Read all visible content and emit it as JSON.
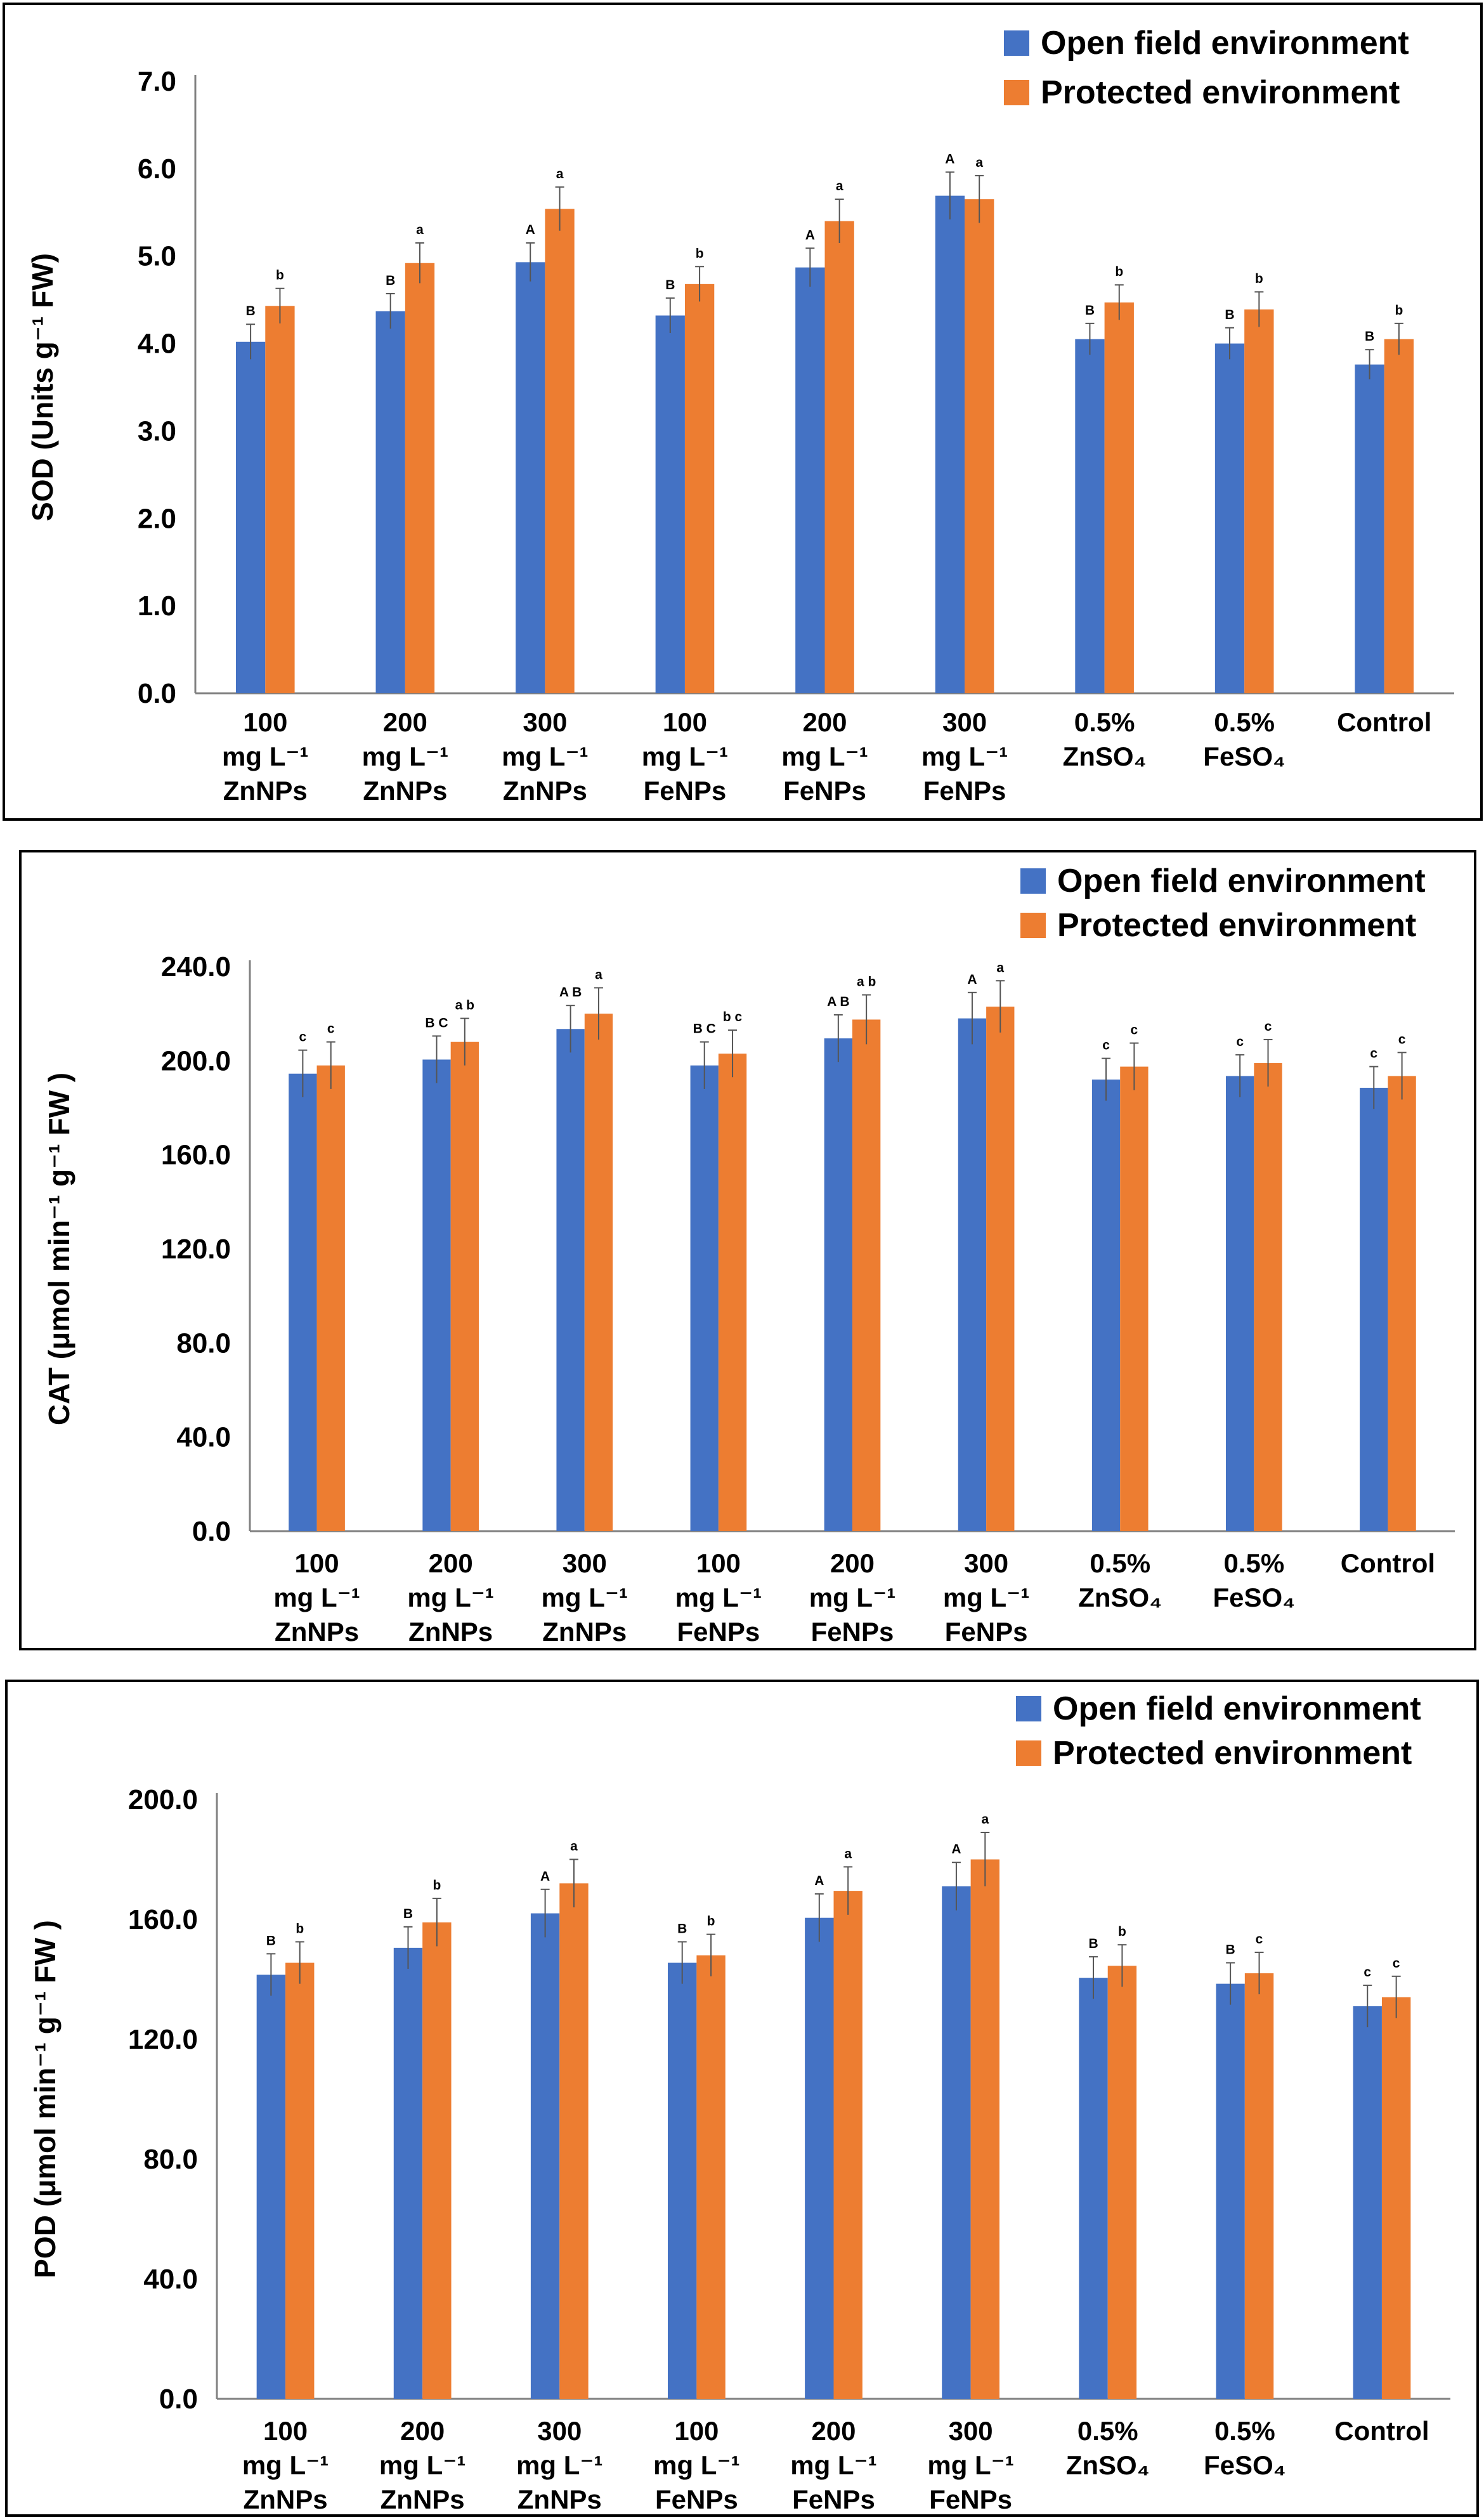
{
  "colors": {
    "open": "#4472C4",
    "protected": "#ED7D31",
    "error": "#555555",
    "axis": "#808080"
  },
  "legend": {
    "open": "Open field environment",
    "protected": "Protected environment",
    "placement": "top-right"
  },
  "categories": [
    [
      "100",
      "mg L⁻¹",
      "ZnNPs"
    ],
    [
      "200",
      "mg L⁻¹",
      "ZnNPs"
    ],
    [
      "300",
      "mg L⁻¹",
      "ZnNPs"
    ],
    [
      "100",
      "mg L⁻¹",
      "FeNPs"
    ],
    [
      "200",
      "mg L⁻¹",
      "FeNPs"
    ],
    [
      "300",
      "mg L⁻¹",
      "FeNPs"
    ],
    [
      "0.5%",
      "ZnSO₄"
    ],
    [
      "0.5%",
      "FeSO₄"
    ],
    [
      "Control"
    ]
  ],
  "chart_data": [
    {
      "type": "bar",
      "ylabel": "SOD (Units g⁻¹ FW)",
      "ylim": [
        0,
        7
      ],
      "yticks": [
        "0.0",
        "1.0",
        "2.0",
        "3.0",
        "4.0",
        "5.0",
        "6.0",
        "7.0"
      ],
      "grid": false,
      "series": [
        {
          "name": "Open field environment",
          "values": [
            4.02,
            4.37,
            4.93,
            4.32,
            4.87,
            5.69,
            4.05,
            4.0,
            3.76
          ],
          "errors": [
            0.2,
            0.2,
            0.22,
            0.2,
            0.22,
            0.27,
            0.18,
            0.18,
            0.17
          ],
          "letters": [
            "B",
            "B",
            "A",
            "B",
            "A",
            "A",
            "B",
            "B",
            "B"
          ]
        },
        {
          "name": "Protected environment",
          "values": [
            4.43,
            4.92,
            5.54,
            4.68,
            5.4,
            5.65,
            4.47,
            4.39,
            4.05
          ],
          "errors": [
            0.2,
            0.23,
            0.25,
            0.2,
            0.25,
            0.27,
            0.2,
            0.2,
            0.18
          ],
          "letters": [
            "b",
            "a",
            "a",
            "b",
            "a",
            "a",
            "b",
            "b",
            "b"
          ]
        }
      ]
    },
    {
      "type": "bar",
      "ylabel": "CAT (μmol min⁻¹ g⁻¹ FW )",
      "ylim": [
        0,
        240
      ],
      "yticks": [
        "0.0",
        "40.0",
        "80.0",
        "120.0",
        "160.0",
        "200.0",
        "240.0"
      ],
      "grid": false,
      "series": [
        {
          "name": "Open field environment",
          "values": [
            194.5,
            200.5,
            213.5,
            198.0,
            209.5,
            218.0,
            192.0,
            193.5,
            188.5
          ],
          "errors": [
            10,
            10,
            10,
            10,
            10,
            11,
            9,
            9,
            9
          ],
          "letters": [
            "c",
            "B C",
            "A B",
            "B C",
            "A B",
            "A",
            "c",
            "c",
            "c"
          ]
        },
        {
          "name": "Protected environment",
          "values": [
            198.0,
            208.0,
            220.0,
            203.0,
            217.5,
            223.0,
            197.5,
            199.0,
            193.5
          ],
          "errors": [
            10,
            10,
            11,
            10,
            10.5,
            11,
            10,
            10,
            10
          ],
          "letters": [
            "c",
            "a b",
            "a",
            "b c",
            "a b",
            "a",
            "c",
            "c",
            "c"
          ]
        }
      ]
    },
    {
      "type": "bar",
      "ylabel": "POD (μmol min⁻¹ g⁻¹ FW )",
      "ylim": [
        0,
        200
      ],
      "yticks": [
        "0.0",
        "40.0",
        "80.0",
        "120.0",
        "160.0",
        "200.0"
      ],
      "grid": false,
      "series": [
        {
          "name": "Open field environment",
          "values": [
            141.5,
            150.5,
            162.0,
            145.5,
            160.5,
            171.0,
            140.5,
            138.5,
            131.0
          ],
          "errors": [
            7,
            7,
            8,
            7,
            8,
            8,
            7,
            7,
            7
          ],
          "letters": [
            "B",
            "B",
            "A",
            "B",
            "A",
            "A",
            "B",
            "B",
            "c"
          ]
        },
        {
          "name": "Protected environment",
          "values": [
            145.5,
            159.0,
            172.0,
            148.0,
            169.5,
            180.0,
            144.5,
            142.0,
            134.0
          ],
          "errors": [
            7,
            8,
            8,
            7,
            8,
            9,
            7,
            7,
            7
          ],
          "letters": [
            "b",
            "b",
            "a",
            "b",
            "a",
            "a",
            "b",
            "c",
            "c"
          ]
        }
      ]
    }
  ]
}
